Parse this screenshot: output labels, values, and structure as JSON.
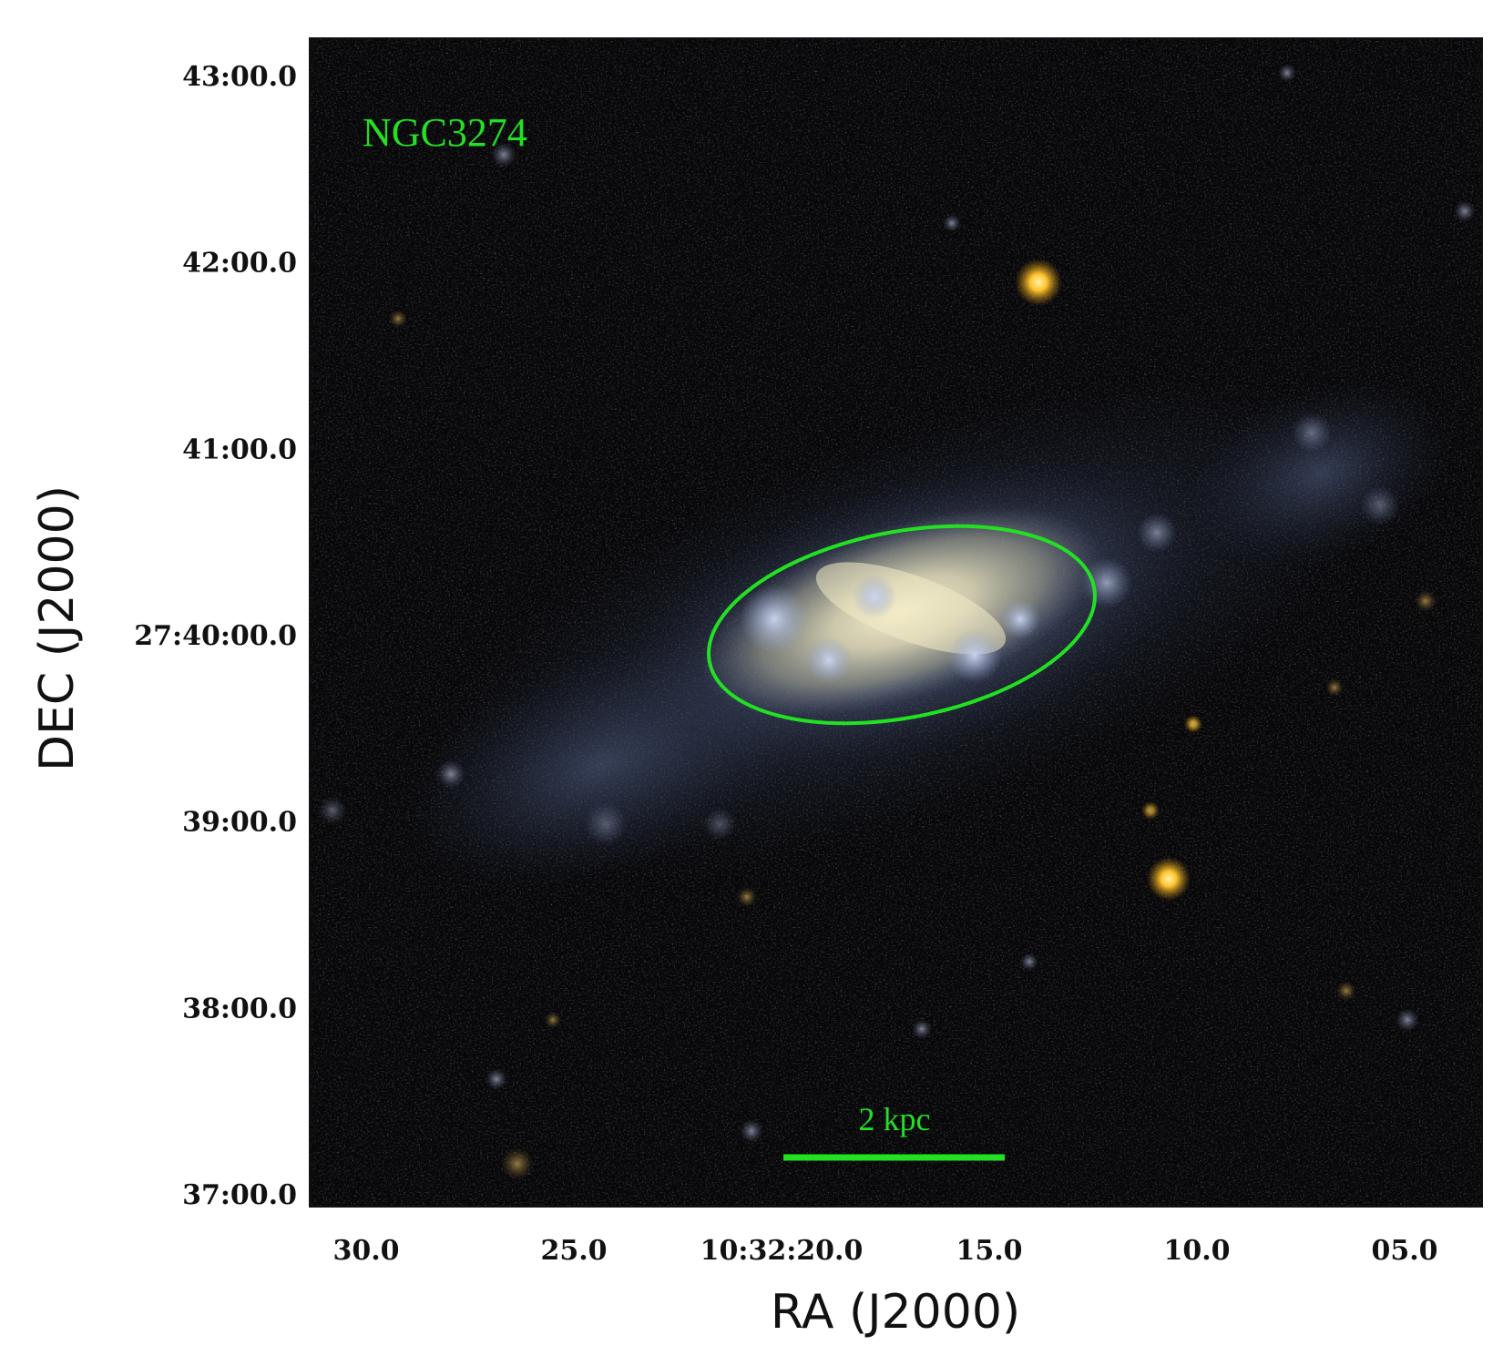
{
  "figure": {
    "object_label": "NGC3274",
    "scale_bar_label": "2 kpc",
    "x_axis_title": "RA (J2000)",
    "y_axis_title": "DEC (J2000)",
    "overlay_color": "#22e022",
    "image_colors": {
      "background": "#07070a",
      "galaxy_core": "#e4dcb8",
      "galaxy_disk": "#8c96b4",
      "star": "#ffbc28"
    }
  },
  "axes": {
    "ra_ticks": [
      {
        "value_s": 30,
        "label": "30.0"
      },
      {
        "value_s": 25,
        "label": "25.0"
      },
      {
        "value_s": 20,
        "label": "10:32:20.0"
      },
      {
        "value_s": 15,
        "label": "15.0"
      },
      {
        "value_s": 10,
        "label": "10.0"
      },
      {
        "value_s": 5,
        "label": "05.0"
      }
    ],
    "dec_ticks": [
      {
        "value_arcmin": 43,
        "label": "43:00.0"
      },
      {
        "value_arcmin": 42,
        "label": "42:00.0"
      },
      {
        "value_arcmin": 41,
        "label": "41:00.0"
      },
      {
        "value_arcmin": 40,
        "label": "27:40:00.0"
      },
      {
        "value_arcmin": 39,
        "label": "39:00.0"
      },
      {
        "value_arcmin": 38,
        "label": "38:00.0"
      },
      {
        "value_arcmin": 37,
        "label": "37:00.0"
      }
    ]
  }
}
